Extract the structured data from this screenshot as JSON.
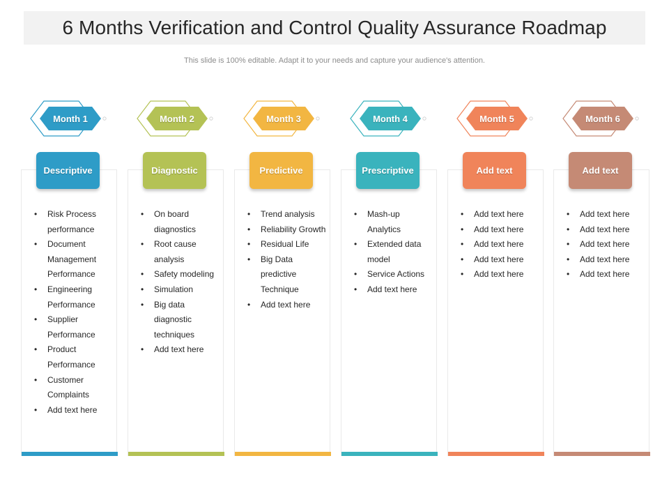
{
  "title": "6 Months Verification and Control Quality Assurance Roadmap",
  "subtitle": "This slide is 100% editable. Adapt it to your needs and capture your audience's attention.",
  "columns": [
    {
      "month": "Month 1",
      "heading": "Descriptive",
      "color": "#2e9cc7",
      "items": [
        "Risk Process performance",
        "Document Management Performance",
        "Engineering Performance",
        "Supplier Performance",
        "Product Performance",
        "Customer Complaints",
        "Add text here"
      ]
    },
    {
      "month": "Month 2",
      "heading": "Diagnostic",
      "color": "#b4c255",
      "items": [
        "On board diagnostics",
        "Root cause analysis",
        "Safety modeling",
        "Simulation",
        "Big data diagnostic techniques",
        "Add text here"
      ]
    },
    {
      "month": "Month 3",
      "heading": "Predictive",
      "color": "#f2b642",
      "items": [
        "Trend analysis",
        "Reliability Growth",
        "Residual Life",
        "Big Data predictive Technique",
        "Add text here"
      ]
    },
    {
      "month": "Month 4",
      "heading": "Prescriptive",
      "color": "#3ab3bd",
      "items": [
        "Mash-up Analytics",
        "Extended data model",
        "Service Actions",
        "Add text here"
      ]
    },
    {
      "month": "Month 5",
      "heading": "Add text",
      "color": "#f0845a",
      "items": [
        "Add text here",
        "Add text here",
        "Add text here",
        "Add text here",
        "Add text here"
      ]
    },
    {
      "month": "Month 6",
      "heading": "Add text",
      "color": "#c58a75",
      "items": [
        "Add text here",
        "Add text here",
        "Add text here",
        "Add text here",
        "Add text here"
      ]
    }
  ]
}
